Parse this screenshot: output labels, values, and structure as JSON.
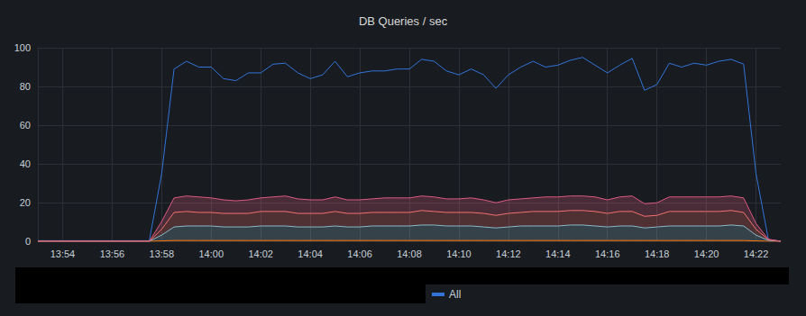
{
  "chart_data": {
    "type": "line",
    "title": "DB Queries / sec",
    "categories": [
      null,
      null,
      "13:54",
      null,
      null,
      null,
      "13:56",
      null,
      null,
      null,
      "13:58",
      null,
      null,
      null,
      "14:00",
      null,
      null,
      null,
      "14:02",
      null,
      null,
      null,
      "14:04",
      null,
      null,
      null,
      "14:06",
      null,
      null,
      null,
      "14:08",
      null,
      null,
      null,
      "14:10",
      null,
      null,
      null,
      "14:12",
      null,
      null,
      null,
      "14:14",
      null,
      null,
      null,
      "14:16",
      null,
      null,
      null,
      "14:18",
      null,
      null,
      null,
      "14:20",
      null,
      null,
      null,
      "14:22",
      null,
      null
    ],
    "ylim": [
      0,
      100
    ],
    "yticks": [
      0,
      20,
      40,
      60,
      80,
      100
    ],
    "grid": true,
    "stacked": true,
    "legend": "bottom",
    "series": [
      {
        "name": "All",
        "type": "line",
        "color": "#3274d9",
        "values": [
          0.3,
          0.3,
          0.3,
          0.3,
          0.3,
          0.3,
          0.3,
          0.3,
          0.3,
          0.3,
          35,
          89,
          93,
          90,
          90,
          84,
          83,
          87,
          87,
          91.5,
          92,
          87,
          84,
          86,
          93,
          85,
          87,
          88,
          88,
          89,
          89,
          94,
          93,
          88,
          86,
          89,
          86,
          79,
          86,
          90,
          93,
          90,
          91,
          93.5,
          95,
          91,
          87,
          91,
          94.5,
          78,
          81,
          92,
          90,
          92,
          91,
          93,
          94,
          91.5,
          35,
          1,
          0
        ]
      },
      {
        "type": "area",
        "color": "#ff780a",
        "values": [
          0,
          0,
          0,
          0,
          0,
          0,
          0,
          0,
          0,
          0,
          0.2,
          0.4,
          0.4,
          0.4,
          0.4,
          0.4,
          0.4,
          0.4,
          0.4,
          0.4,
          0.4,
          0.4,
          0.4,
          0.4,
          0.4,
          0.4,
          0.4,
          0.4,
          0.4,
          0.4,
          0.4,
          0.4,
          0.4,
          0.4,
          0.4,
          0.4,
          0.4,
          0.4,
          0.4,
          0.4,
          0.4,
          0.4,
          0.4,
          0.4,
          0.4,
          0.4,
          0.4,
          0.4,
          0.4,
          0.4,
          0.4,
          0.4,
          0.4,
          0.4,
          0.4,
          0.4,
          0.4,
          0.4,
          0.2,
          0,
          0
        ]
      },
      {
        "type": "area",
        "color": "#8ab8c8",
        "values": [
          0,
          0,
          0,
          0,
          0,
          0,
          0,
          0,
          0,
          0,
          3,
          7,
          7.5,
          7.5,
          7.5,
          7,
          7,
          7,
          7.5,
          7.5,
          7.5,
          7,
          7,
          7,
          7.5,
          7,
          7,
          7.5,
          7.5,
          7.5,
          7.5,
          8,
          8,
          7.5,
          7.5,
          7.5,
          7,
          6.5,
          7,
          7.5,
          7.5,
          7.5,
          7.5,
          8,
          8,
          7.5,
          7,
          7.5,
          7.5,
          6.5,
          7,
          7.5,
          7.5,
          7.5,
          7.5,
          7.5,
          8,
          7.5,
          3,
          0.5,
          0
        ]
      },
      {
        "type": "area",
        "color": "#f2726f",
        "values": [
          0,
          0,
          0,
          0,
          0,
          0,
          0,
          0,
          0,
          0,
          3,
          7.5,
          7.5,
          7,
          7,
          7,
          7,
          7,
          7.5,
          7.5,
          7.5,
          7,
          7,
          7,
          7.5,
          7,
          7,
          7,
          7,
          7,
          7,
          7.5,
          7,
          7,
          7,
          7,
          7,
          6.5,
          7,
          7,
          7.5,
          7.5,
          7.5,
          7.5,
          7.5,
          7.5,
          7,
          7.5,
          7.5,
          6,
          6,
          7.5,
          7.5,
          7.5,
          7.5,
          7.5,
          7.5,
          7,
          3,
          0.3,
          0
        ]
      },
      {
        "type": "area",
        "color": "#de5a82",
        "values": [
          0,
          0,
          0,
          0,
          0,
          0,
          0,
          0,
          0,
          0,
          4,
          7.5,
          8,
          8,
          7.5,
          7,
          6.5,
          7,
          7,
          7.5,
          8,
          7.5,
          7,
          7,
          7.5,
          7,
          7,
          7,
          7.5,
          7.5,
          7.5,
          7.5,
          7.5,
          7,
          7,
          7.5,
          7,
          6.5,
          7,
          7,
          7,
          7.5,
          7.5,
          7.5,
          7.5,
          7.5,
          7,
          7.5,
          8,
          6.5,
          6.5,
          7.5,
          7.5,
          7.5,
          7.5,
          7.5,
          7.5,
          7.5,
          3,
          0.2,
          0
        ]
      }
    ]
  }
}
